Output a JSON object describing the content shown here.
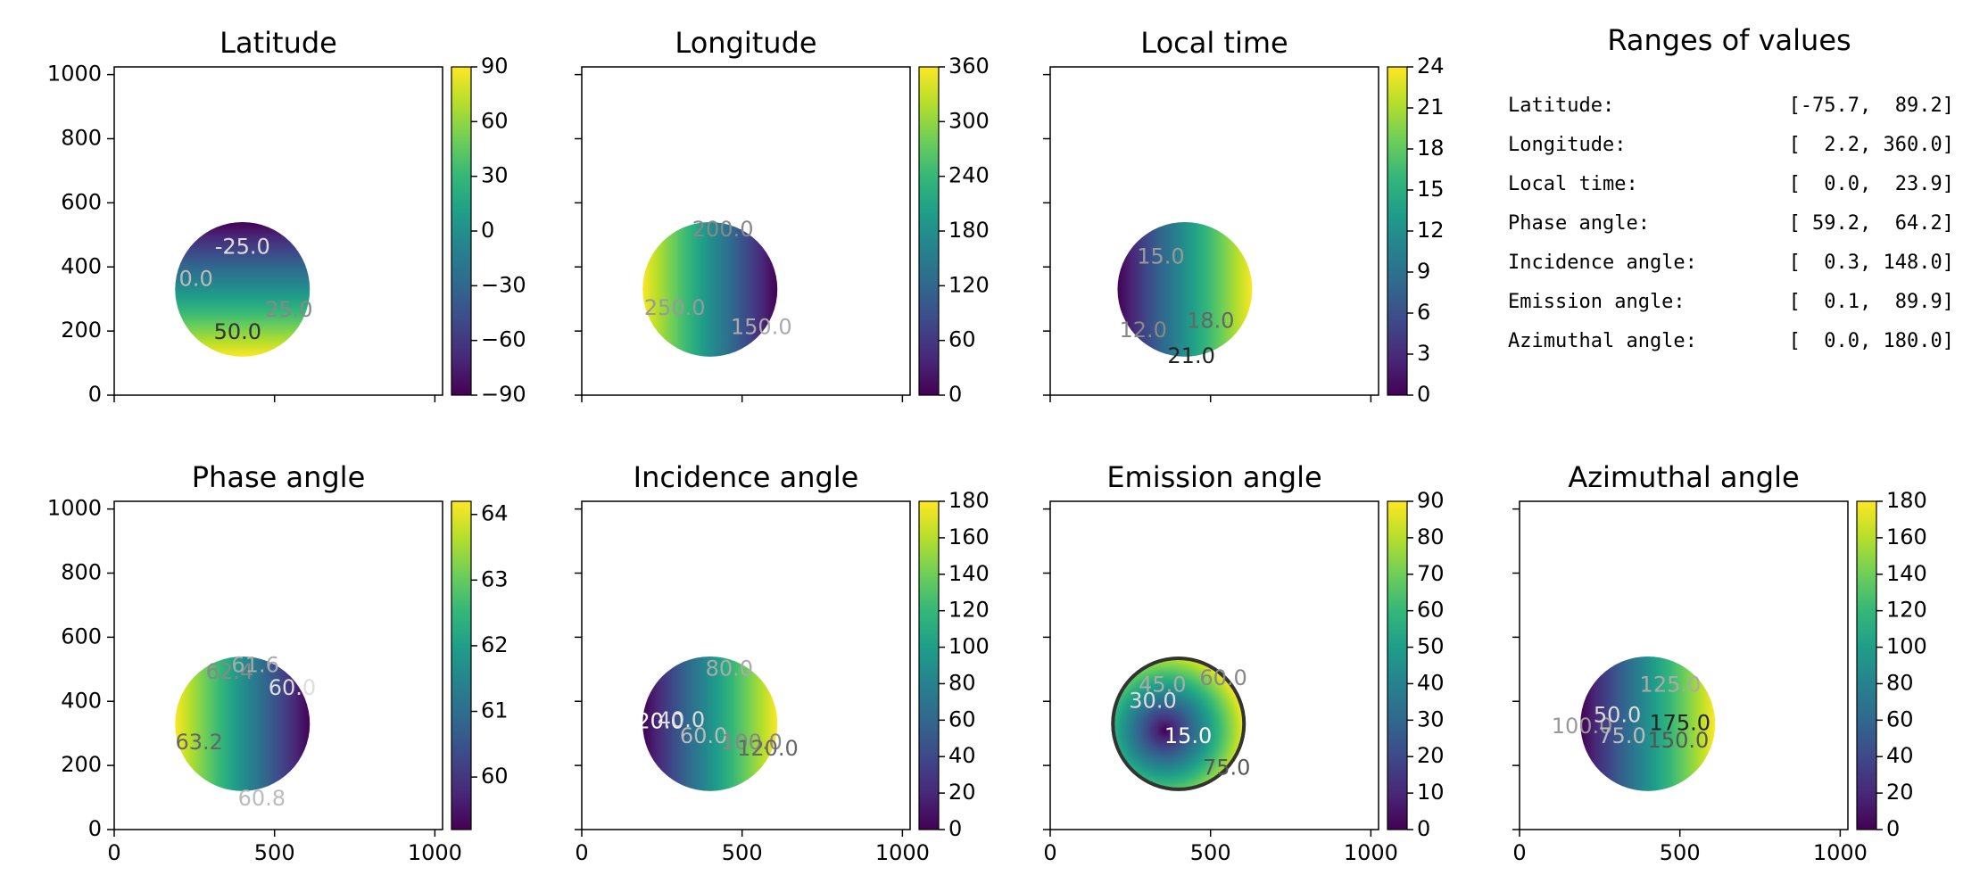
{
  "ranges_panel": {
    "title": "Ranges of values",
    "rows": [
      {
        "label": "Latitude:",
        "value": "[-75.7,  89.2]"
      },
      {
        "label": "Longitude:",
        "value": "[  2.2, 360.0]"
      },
      {
        "label": "Local time:",
        "value": "[  0.0,  23.9]"
      },
      {
        "label": "Phase angle:",
        "value": "[ 59.2,  64.2]"
      },
      {
        "label": "Incidence angle:",
        "value": "[  0.3, 148.0]"
      },
      {
        "label": "Emission angle:",
        "value": "[  0.1,  89.9]"
      },
      {
        "label": "Azimuthal angle:",
        "value": "[  0.0, 180.0]"
      }
    ]
  },
  "chart_data": [
    {
      "type": "heatmap",
      "title": "Latitude",
      "colormap": "viridis",
      "xlim": [
        0,
        1024
      ],
      "ylim": [
        0,
        1024
      ],
      "xticks": [
        0,
        500,
        1000
      ],
      "xtick_labels": [],
      "yticks": [
        0,
        200,
        400,
        600,
        800,
        1000
      ],
      "ytick_labels": [
        "0",
        "200",
        "400",
        "600",
        "800",
        "1000"
      ],
      "colorbar": {
        "range": [
          -90,
          90
        ],
        "ticks": [
          -90,
          -60,
          -30,
          0,
          30,
          60,
          90
        ],
        "tick_labels": [
          "−90",
          "−60",
          "−30",
          "0",
          "30",
          "60",
          "90"
        ]
      },
      "disc": {
        "center": [
          400,
          330
        ],
        "radius": 210
      },
      "contour_labels": [
        {
          "text": "-25.0",
          "x": 400,
          "y": 460,
          "color": "#dddddd"
        },
        {
          "text": "0.0",
          "x": 255,
          "y": 360,
          "color": "#bbbbbb"
        },
        {
          "text": "25.0",
          "x": 545,
          "y": 265,
          "color": "#888888"
        },
        {
          "text": "50.0",
          "x": 385,
          "y": 195,
          "color": "#333333"
        }
      ]
    },
    {
      "type": "heatmap",
      "title": "Longitude",
      "colormap": "viridis",
      "xlim": [
        0,
        1024
      ],
      "ylim": [
        0,
        1024
      ],
      "xticks": [
        0,
        500,
        1000
      ],
      "xtick_labels": [],
      "yticks": [
        0,
        200,
        400,
        600,
        800,
        1000
      ],
      "ytick_labels": [],
      "colorbar": {
        "range": [
          0,
          360
        ],
        "ticks": [
          0,
          60,
          120,
          180,
          240,
          300,
          360
        ],
        "tick_labels": [
          "0",
          "60",
          "120",
          "180",
          "240",
          "300",
          "360"
        ]
      },
      "disc": {
        "center": [
          400,
          330
        ],
        "radius": 210
      },
      "contour_labels": [
        {
          "text": "200.0",
          "x": 440,
          "y": 515,
          "color": "#888888"
        },
        {
          "text": "250.0",
          "x": 290,
          "y": 270,
          "color": "#999999"
        },
        {
          "text": "150.0",
          "x": 560,
          "y": 210,
          "color": "#aaaaaa"
        }
      ]
    },
    {
      "type": "heatmap",
      "title": "Local time",
      "colormap": "viridis",
      "xlim": [
        0,
        1024
      ],
      "ylim": [
        0,
        1024
      ],
      "xticks": [
        0,
        500,
        1000
      ],
      "xtick_labels": [],
      "yticks": [
        0,
        200,
        400,
        600,
        800,
        1000
      ],
      "ytick_labels": [],
      "colorbar": {
        "range": [
          0,
          24
        ],
        "ticks": [
          0,
          3,
          6,
          9,
          12,
          15,
          18,
          21,
          24
        ],
        "tick_labels": [
          "0",
          "3",
          "6",
          "9",
          "12",
          "15",
          "18",
          "21",
          "24"
        ]
      },
      "disc": {
        "center": [
          420,
          330
        ],
        "radius": 210
      },
      "contour_labels": [
        {
          "text": "15.0",
          "x": 345,
          "y": 430,
          "color": "#999999"
        },
        {
          "text": "12.0",
          "x": 290,
          "y": 200,
          "color": "#888888"
        },
        {
          "text": "18.0",
          "x": 500,
          "y": 230,
          "color": "#666666"
        },
        {
          "text": "21.0",
          "x": 440,
          "y": 120,
          "color": "#222222"
        }
      ]
    },
    {
      "type": "heatmap",
      "title": "Phase angle",
      "colormap": "viridis",
      "xlim": [
        0,
        1024
      ],
      "ylim": [
        0,
        1024
      ],
      "xticks": [
        0,
        500,
        1000
      ],
      "xtick_labels": [
        "0",
        "500",
        "1000"
      ],
      "yticks": [
        0,
        200,
        400,
        600,
        800,
        1000
      ],
      "ytick_labels": [
        "0",
        "200",
        "400",
        "600",
        "800",
        "1000"
      ],
      "colorbar": {
        "range": [
          59.2,
          64.2
        ],
        "ticks": [
          60,
          61,
          62,
          63,
          64
        ],
        "tick_labels": [
          "60",
          "61",
          "62",
          "63",
          "64"
        ]
      },
      "disc": {
        "center": [
          400,
          330
        ],
        "radius": 210
      },
      "contour_labels": [
        {
          "text": "62.4",
          "x": 360,
          "y": 490,
          "color": "#888888"
        },
        {
          "text": "61.6",
          "x": 440,
          "y": 510,
          "color": "#aaaaaa"
        },
        {
          "text": "60.0",
          "x": 555,
          "y": 440,
          "color": "#dddddd"
        },
        {
          "text": "63.2",
          "x": 265,
          "y": 270,
          "color": "#666666"
        },
        {
          "text": "60.8",
          "x": 460,
          "y": 95,
          "color": "#bbbbbb"
        }
      ]
    },
    {
      "type": "heatmap",
      "title": "Incidence angle",
      "colormap": "viridis",
      "xlim": [
        0,
        1024
      ],
      "ylim": [
        0,
        1024
      ],
      "xticks": [
        0,
        500,
        1000
      ],
      "xtick_labels": [
        "0",
        "500",
        "1000"
      ],
      "yticks": [
        0,
        200,
        400,
        600,
        800,
        1000
      ],
      "ytick_labels": [],
      "colorbar": {
        "range": [
          0,
          180
        ],
        "ticks": [
          0,
          20,
          40,
          60,
          80,
          100,
          120,
          140,
          160,
          180
        ],
        "tick_labels": [
          "0",
          "20",
          "40",
          "60",
          "80",
          "100",
          "120",
          "140",
          "160",
          "180"
        ]
      },
      "disc": {
        "center": [
          400,
          330
        ],
        "radius": 210
      },
      "contour_labels": [
        {
          "text": "20.0",
          "x": 245,
          "y": 335,
          "color": "#ffffff"
        },
        {
          "text": "40.0",
          "x": 310,
          "y": 340,
          "color": "#dddddd"
        },
        {
          "text": "60.0",
          "x": 380,
          "y": 290,
          "color": "#bbbbbb"
        },
        {
          "text": "80.0",
          "x": 460,
          "y": 500,
          "color": "#aaaaaa"
        },
        {
          "text": "100.0",
          "x": 530,
          "y": 270,
          "color": "#888888"
        },
        {
          "text": "120.0",
          "x": 580,
          "y": 250,
          "color": "#666666"
        }
      ]
    },
    {
      "type": "heatmap",
      "title": "Emission angle",
      "colormap": "viridis",
      "xlim": [
        0,
        1024
      ],
      "ylim": [
        0,
        1024
      ],
      "xticks": [
        0,
        500,
        1000
      ],
      "xtick_labels": [
        "0",
        "500",
        "1000"
      ],
      "yticks": [
        0,
        200,
        400,
        600,
        800,
        1000
      ],
      "ytick_labels": [],
      "colorbar": {
        "range": [
          0,
          90
        ],
        "ticks": [
          0,
          10,
          20,
          30,
          40,
          50,
          60,
          70,
          80,
          90
        ],
        "tick_labels": [
          "0",
          "10",
          "20",
          "30",
          "40",
          "50",
          "60",
          "70",
          "80",
          "90"
        ]
      },
      "disc": {
        "center": [
          400,
          330
        ],
        "radius": 210
      },
      "contour_labels": [
        {
          "text": "15.0",
          "x": 430,
          "y": 290,
          "color": "#ffffff"
        },
        {
          "text": "30.0",
          "x": 320,
          "y": 400,
          "color": "#dddddd"
        },
        {
          "text": "45.0",
          "x": 350,
          "y": 450,
          "color": "#aaaaaa"
        },
        {
          "text": "60.0",
          "x": 540,
          "y": 470,
          "color": "#888888"
        },
        {
          "text": "75.0",
          "x": 550,
          "y": 190,
          "color": "#555555"
        }
      ]
    },
    {
      "type": "heatmap",
      "title": "Azimuthal angle",
      "colormap": "viridis",
      "xlim": [
        0,
        1024
      ],
      "ylim": [
        0,
        1024
      ],
      "xticks": [
        0,
        500,
        1000
      ],
      "xtick_labels": [
        "0",
        "500",
        "1000"
      ],
      "yticks": [
        0,
        200,
        400,
        600,
        800,
        1000
      ],
      "ytick_labels": [],
      "colorbar": {
        "range": [
          0,
          180
        ],
        "ticks": [
          0,
          20,
          40,
          60,
          80,
          100,
          120,
          140,
          160,
          180
        ],
        "tick_labels": [
          "0",
          "20",
          "40",
          "60",
          "80",
          "100",
          "120",
          "140",
          "160",
          "180"
        ]
      },
      "disc": {
        "center": [
          400,
          330
        ],
        "radius": 210
      },
      "contour_labels": [
        {
          "text": "125.0",
          "x": 470,
          "y": 450,
          "color": "#aaaaaa"
        },
        {
          "text": "175.0",
          "x": 500,
          "y": 330,
          "color": "#222222"
        },
        {
          "text": "150.0",
          "x": 495,
          "y": 275,
          "color": "#555555"
        },
        {
          "text": "100.0",
          "x": 195,
          "y": 320,
          "color": "#999999"
        },
        {
          "text": "75.0",
          "x": 320,
          "y": 290,
          "color": "#bbbbbb"
        },
        {
          "text": "50.0",
          "x": 305,
          "y": 355,
          "color": "#dddddd"
        }
      ]
    }
  ]
}
